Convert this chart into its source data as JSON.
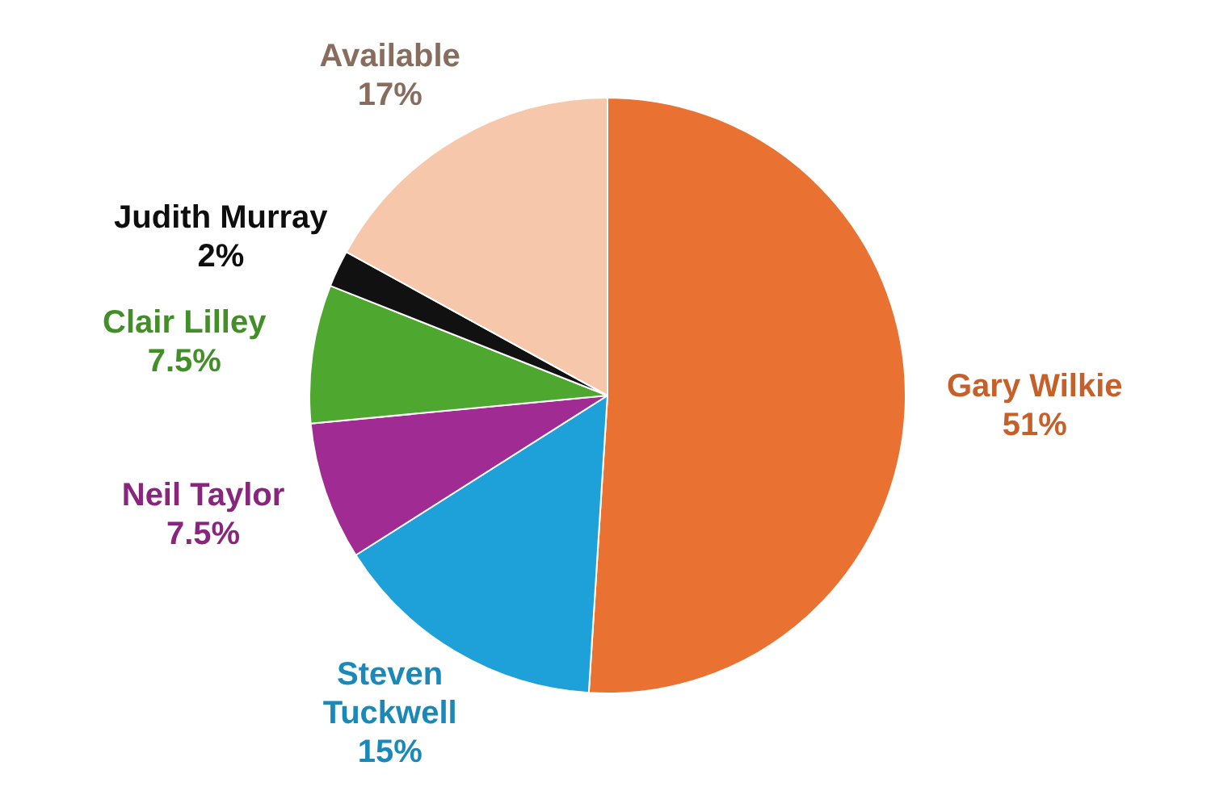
{
  "chart_data": {
    "type": "pie",
    "categories": [
      "Gary Wilkie",
      "Steven Tuckwell",
      "Neil Taylor",
      "Clair Lilley",
      "Judith Murray",
      "Available"
    ],
    "values": [
      51,
      15,
      7.5,
      7.5,
      2,
      17
    ],
    "colors": [
      "#e97132",
      "#1ea0d8",
      "#a02b93",
      "#4ea72e",
      "#111111",
      "#f7c7ac"
    ],
    "value_labels": [
      "51%",
      "15%",
      "7.5%",
      "7.5%",
      "2%",
      "17%"
    ],
    "legend": false
  }
}
